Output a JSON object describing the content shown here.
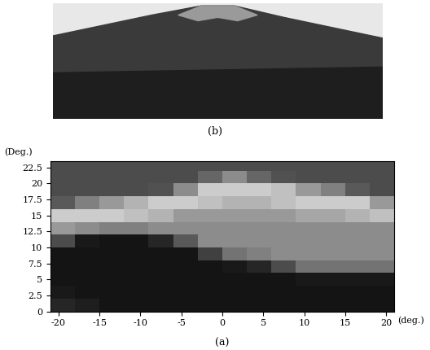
{
  "chart_data": {
    "type": "heatmap",
    "photo_caption": "(b)",
    "caption": "(a)",
    "x_label": "(deg.)",
    "y_label": "(Deg.)",
    "xlim": [
      -21,
      21
    ],
    "ylim": [
      0,
      23.5
    ],
    "xticks": [
      -20,
      -15,
      -10,
      -5,
      0,
      5,
      10,
      15,
      20
    ],
    "yticks": [
      0,
      2.5,
      5,
      7.5,
      10,
      12.5,
      15,
      17.5,
      20,
      22.5
    ],
    "x_edges": [
      -21,
      -18,
      -15,
      -12,
      -9,
      -6,
      -3,
      0,
      3,
      6,
      9,
      12,
      15,
      18,
      21
    ],
    "y_edges": [
      0,
      2,
      4,
      6,
      8,
      10,
      12,
      14,
      16,
      18,
      20,
      22,
      24
    ],
    "cell_range": [
      0,
      1
    ],
    "color": "gray",
    "cells": [
      [
        0.15,
        0.12,
        0.08,
        0.08,
        0.08,
        0.08,
        0.08,
        0.08,
        0.08,
        0.08,
        0.08,
        0.08,
        0.08,
        0.08
      ],
      [
        0.1,
        0.08,
        0.08,
        0.08,
        0.08,
        0.08,
        0.08,
        0.08,
        0.08,
        0.08,
        0.08,
        0.08,
        0.08,
        0.08
      ],
      [
        0.08,
        0.08,
        0.08,
        0.08,
        0.08,
        0.08,
        0.08,
        0.08,
        0.08,
        0.08,
        0.1,
        0.1,
        0.1,
        0.1
      ],
      [
        0.08,
        0.08,
        0.08,
        0.08,
        0.08,
        0.08,
        0.08,
        0.1,
        0.15,
        0.3,
        0.45,
        0.45,
        0.45,
        0.45
      ],
      [
        0.08,
        0.08,
        0.08,
        0.08,
        0.08,
        0.08,
        0.25,
        0.45,
        0.5,
        0.55,
        0.55,
        0.55,
        0.55,
        0.55
      ],
      [
        0.3,
        0.1,
        0.08,
        0.08,
        0.15,
        0.35,
        0.55,
        0.55,
        0.55,
        0.55,
        0.55,
        0.55,
        0.55,
        0.55
      ],
      [
        0.6,
        0.55,
        0.5,
        0.5,
        0.55,
        0.55,
        0.55,
        0.55,
        0.55,
        0.55,
        0.55,
        0.55,
        0.55,
        0.55
      ],
      [
        0.8,
        0.8,
        0.8,
        0.75,
        0.7,
        0.6,
        0.6,
        0.6,
        0.6,
        0.6,
        0.65,
        0.65,
        0.7,
        0.75
      ],
      [
        0.35,
        0.5,
        0.6,
        0.7,
        0.8,
        0.8,
        0.75,
        0.7,
        0.7,
        0.75,
        0.8,
        0.8,
        0.8,
        0.6
      ],
      [
        0.3,
        0.3,
        0.3,
        0.3,
        0.32,
        0.55,
        0.8,
        0.8,
        0.8,
        0.75,
        0.6,
        0.5,
        0.35,
        0.3
      ],
      [
        0.3,
        0.3,
        0.3,
        0.3,
        0.3,
        0.3,
        0.4,
        0.55,
        0.4,
        0.32,
        0.3,
        0.3,
        0.3,
        0.3
      ],
      [
        0.3,
        0.3,
        0.3,
        0.3,
        0.3,
        0.3,
        0.3,
        0.3,
        0.3,
        0.3,
        0.3,
        0.3,
        0.3,
        0.3
      ]
    ]
  }
}
